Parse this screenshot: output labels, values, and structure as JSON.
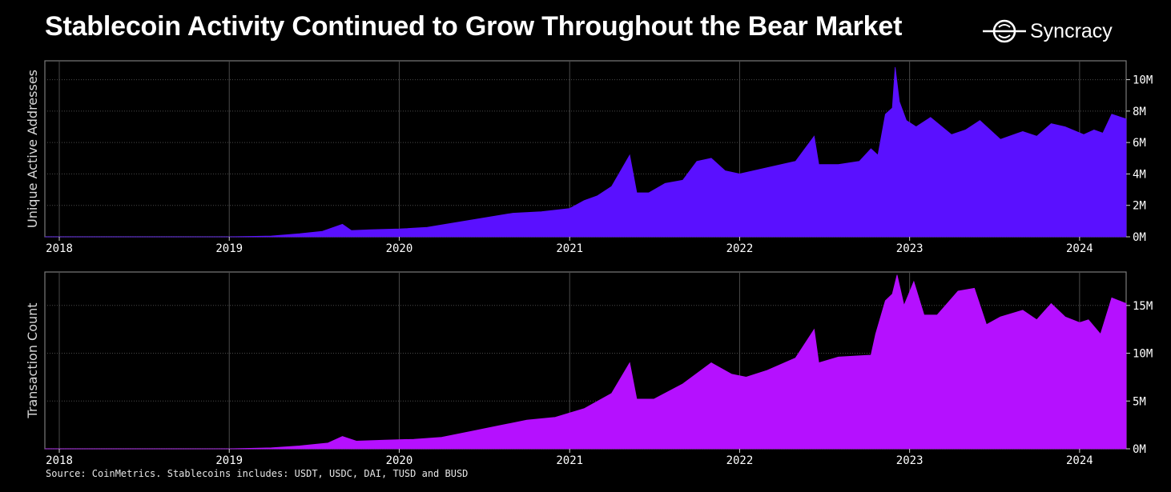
{
  "title": "Stablecoin Activity Continued to Grow Throughout the Bear Market",
  "brand": {
    "name": "Syncracy",
    "logo_icon": "syncracy-logo-icon"
  },
  "source": "Source: CoinMetrics. Stablecoins includes: USDT, USDC, DAI, TUSD and BUSD",
  "chart_data": [
    {
      "type": "area",
      "ylabel": "Unique Active Addresses",
      "color": "#5a10ff",
      "grid": true,
      "xlim": [
        "2017-12-01",
        "2024-04-10"
      ],
      "ylim": [
        0,
        11.2
      ],
      "x_ticks": [
        "2018",
        "2019",
        "2020",
        "2021",
        "2022",
        "2023",
        "2024"
      ],
      "y_ticks": [
        {
          "value": 0,
          "label": "0M"
        },
        {
          "value": 2,
          "label": "2M"
        },
        {
          "value": 4,
          "label": "4M"
        },
        {
          "value": 6,
          "label": "6M"
        },
        {
          "value": 8,
          "label": "8M"
        },
        {
          "value": 10,
          "label": "10M"
        }
      ],
      "x": [
        "2017-12-01",
        "2018-06-01",
        "2019-01-01",
        "2019-04-01",
        "2019-06-01",
        "2019-07-20",
        "2019-09-01",
        "2019-09-20",
        "2019-11-01",
        "2020-01-01",
        "2020-03-01",
        "2020-05-01",
        "2020-07-01",
        "2020-09-01",
        "2020-11-01",
        "2021-01-01",
        "2021-02-01",
        "2021-03-01",
        "2021-04-01",
        "2021-05-10",
        "2021-05-25",
        "2021-06-20",
        "2021-07-25",
        "2021-09-01",
        "2021-10-01",
        "2021-11-01",
        "2021-12-01",
        "2022-01-01",
        "2022-03-01",
        "2022-05-01",
        "2022-06-10",
        "2022-06-20",
        "2022-08-01",
        "2022-09-15",
        "2022-10-10",
        "2022-10-25",
        "2022-11-10",
        "2022-11-25",
        "2022-12-01",
        "2022-12-10",
        "2022-12-25",
        "2023-01-15",
        "2023-02-15",
        "2023-04-01",
        "2023-05-01",
        "2023-06-01",
        "2023-07-15",
        "2023-09-01",
        "2023-10-01",
        "2023-11-01",
        "2023-12-01",
        "2024-01-10",
        "2024-02-01",
        "2024-02-20",
        "2024-03-10",
        "2024-04-10"
      ],
      "y": [
        0,
        0,
        0,
        0.05,
        0.2,
        0.35,
        0.8,
        0.4,
        0.45,
        0.5,
        0.6,
        0.9,
        1.2,
        1.5,
        1.6,
        1.8,
        2.3,
        2.6,
        3.2,
        5.2,
        2.8,
        2.8,
        3.4,
        3.6,
        4.8,
        5.0,
        4.2,
        4.0,
        4.4,
        4.8,
        6.4,
        4.6,
        4.6,
        4.8,
        5.6,
        5.2,
        7.8,
        8.2,
        10.8,
        8.6,
        7.4,
        7.0,
        7.6,
        6.5,
        6.8,
        7.4,
        6.2,
        6.7,
        6.4,
        7.2,
        7.0,
        6.5,
        6.8,
        6.6,
        7.8,
        7.5
      ]
    },
    {
      "type": "area",
      "ylabel": "Transaction Count",
      "color": "#b510ff",
      "grid": true,
      "xlim": [
        "2017-12-01",
        "2024-04-10"
      ],
      "ylim": [
        0,
        18.5
      ],
      "x_ticks": [
        "2018",
        "2019",
        "2020",
        "2021",
        "2022",
        "2023",
        "2024"
      ],
      "y_ticks": [
        {
          "value": 0,
          "label": "0M"
        },
        {
          "value": 5,
          "label": "5M"
        },
        {
          "value": 10,
          "label": "10M"
        },
        {
          "value": 15,
          "label": "15M"
        }
      ],
      "x": [
        "2017-12-01",
        "2018-06-01",
        "2019-01-01",
        "2019-04-01",
        "2019-06-01",
        "2019-08-01",
        "2019-09-01",
        "2019-10-01",
        "2019-12-01",
        "2020-02-01",
        "2020-04-01",
        "2020-06-01",
        "2020-08-01",
        "2020-10-01",
        "2020-12-01",
        "2021-02-01",
        "2021-04-01",
        "2021-05-10",
        "2021-05-25",
        "2021-07-01",
        "2021-09-01",
        "2021-11-01",
        "2021-12-15",
        "2022-01-15",
        "2022-03-01",
        "2022-05-01",
        "2022-06-10",
        "2022-06-20",
        "2022-08-01",
        "2022-10-10",
        "2022-10-20",
        "2022-11-10",
        "2022-11-25",
        "2022-12-05",
        "2022-12-20",
        "2023-01-10",
        "2023-02-01",
        "2023-03-01",
        "2023-04-15",
        "2023-05-20",
        "2023-06-15",
        "2023-07-15",
        "2023-09-01",
        "2023-10-01",
        "2023-11-01",
        "2023-12-01",
        "2024-01-01",
        "2024-01-20",
        "2024-02-15",
        "2024-03-10",
        "2024-04-10"
      ],
      "y": [
        0,
        0,
        0,
        0.1,
        0.3,
        0.6,
        1.3,
        0.8,
        0.9,
        1.0,
        1.2,
        1.8,
        2.4,
        3.0,
        3.3,
        4.2,
        5.8,
        9.0,
        5.2,
        5.2,
        6.8,
        9.0,
        7.8,
        7.5,
        8.2,
        9.5,
        12.5,
        9.0,
        9.6,
        9.8,
        12.0,
        15.5,
        16.2,
        18.2,
        15.0,
        17.5,
        14.0,
        14.0,
        16.5,
        16.8,
        13.0,
        13.8,
        14.5,
        13.5,
        15.2,
        13.8,
        13.2,
        13.5,
        12.0,
        15.8,
        15.2
      ]
    }
  ]
}
